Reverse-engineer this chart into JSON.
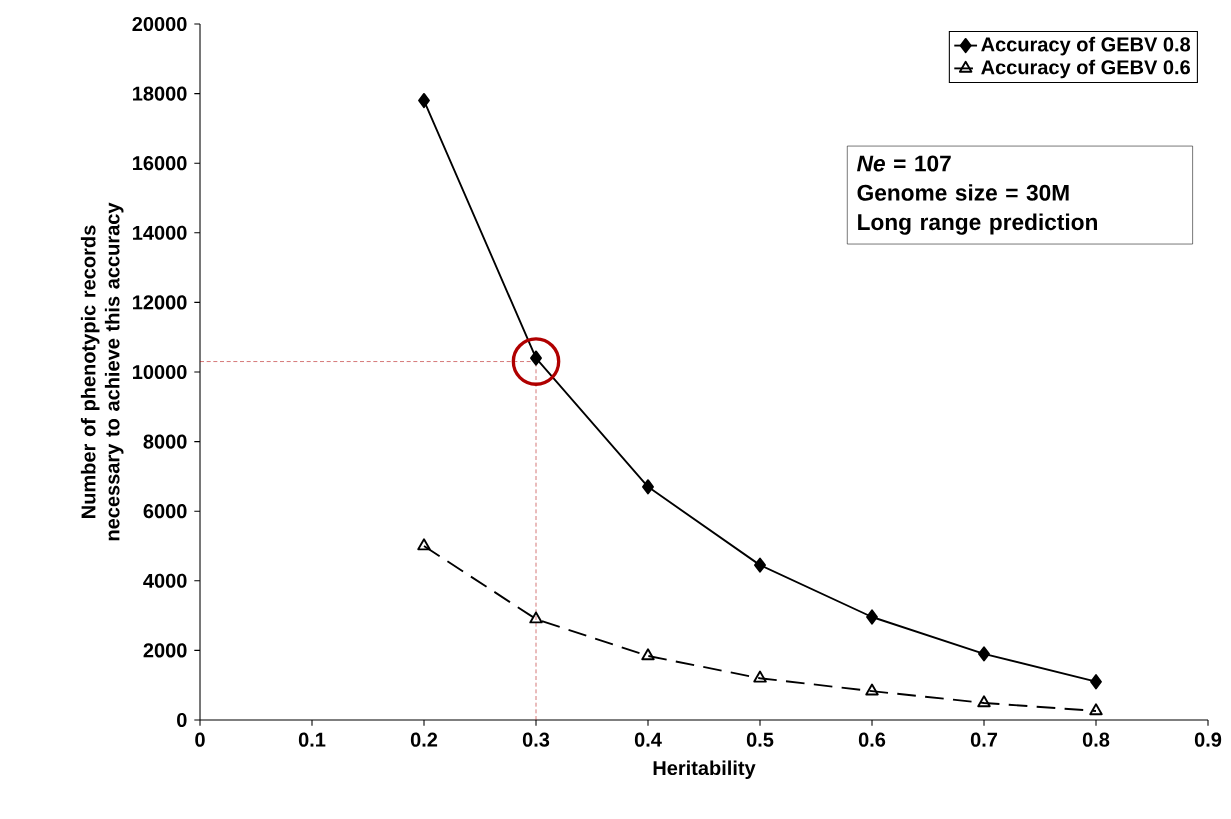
{
  "chart_data": {
    "type": "line",
    "xlabel": "Heritability",
    "ylabel": "Number of phenotypic records necessary to achieve this accuracy",
    "x": [
      0.2,
      0.3,
      0.4,
      0.5,
      0.6,
      0.7,
      0.8
    ],
    "series": [
      {
        "name": "Accuracy of GEBV 0.8",
        "color": "#000000",
        "marker": "diamond",
        "line_style": "solid",
        "values": [
          17800,
          10400,
          6700,
          4450,
          2960,
          1900,
          1100
        ]
      },
      {
        "name": "Accuracy of GEBV 0.6",
        "color": "#000000",
        "marker": "triangle",
        "line_style": "dashed",
        "values": [
          5000,
          2900,
          1840,
          1200,
          830,
          490,
          260
        ]
      }
    ],
    "xlim": [
      0,
      0.9
    ],
    "xticks": [
      0,
      0.1,
      0.2,
      0.3,
      0.4,
      0.5,
      0.6,
      0.7,
      0.8,
      0.9
    ],
    "ylim": [
      0,
      20000
    ],
    "yticks": [
      0,
      2000,
      4000,
      6000,
      8000,
      10000,
      12000,
      14000,
      16000,
      18000,
      20000
    ],
    "ref_lines": [
      {
        "axis": "y",
        "value": 10300,
        "color": "#b00000",
        "line_style": "dashed"
      },
      {
        "axis": "x",
        "value": 0.3,
        "color": "#b00000",
        "line_style": "dashed"
      }
    ],
    "annotations": [
      "*Ne* = 107",
      "Genome size = 30M",
      "Long range prediction"
    ],
    "legend": "top right",
    "grid": false
  }
}
